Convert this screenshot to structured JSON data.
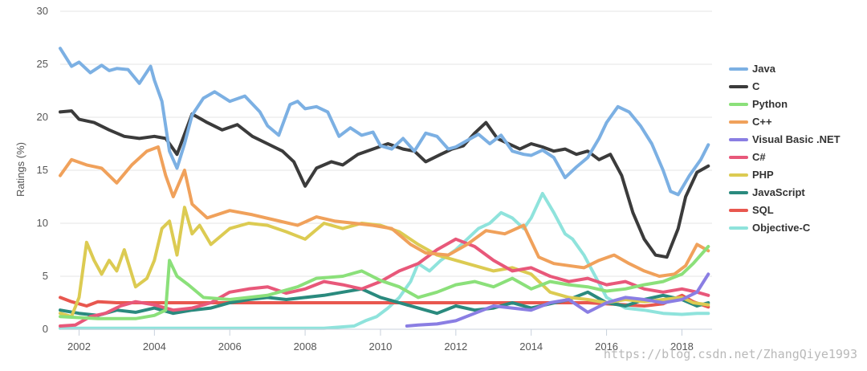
{
  "watermark": "https://blog.csdn.net/ZhangQiye1993",
  "chart_data": {
    "type": "line",
    "title": "",
    "xlabel": "",
    "ylabel": "Ratings (%)",
    "xlim": [
      2001.5,
      2018.8
    ],
    "ylim": [
      0,
      30
    ],
    "x_ticks": [
      "2002",
      "2004",
      "2006",
      "2008",
      "2010",
      "2012",
      "2014",
      "2016",
      "2018"
    ],
    "y_ticks": [
      "0",
      "5",
      "10",
      "15",
      "20",
      "25",
      "30"
    ],
    "grid": true,
    "legend_position": "right",
    "series": [
      {
        "name": "Java",
        "color": "#7cb0e3",
        "x": [
          2001.5,
          2001.8,
          2002.0,
          2002.3,
          2002.6,
          2002.8,
          2003.0,
          2003.3,
          2003.6,
          2003.9,
          2004.0,
          2004.2,
          2004.4,
          2004.6,
          2004.8,
          2005.0,
          2005.3,
          2005.6,
          2006.0,
          2006.4,
          2006.8,
          2007.0,
          2007.3,
          2007.6,
          2007.8,
          2008.0,
          2008.3,
          2008.6,
          2008.9,
          2009.2,
          2009.5,
          2009.8,
          2010.0,
          2010.3,
          2010.6,
          2010.9,
          2011.2,
          2011.5,
          2011.8,
          2012.0,
          2012.3,
          2012.6,
          2012.9,
          2013.2,
          2013.5,
          2013.8,
          2014.0,
          2014.3,
          2014.6,
          2014.9,
          2015.2,
          2015.5,
          2015.8,
          2016.0,
          2016.3,
          2016.6,
          2016.9,
          2017.2,
          2017.5,
          2017.7,
          2017.9,
          2018.2,
          2018.5,
          2018.7
        ],
        "y": [
          26.5,
          24.8,
          25.2,
          24.2,
          24.9,
          24.4,
          24.6,
          24.5,
          23.2,
          24.8,
          23.5,
          21.5,
          16.8,
          15.2,
          17.5,
          20.2,
          21.8,
          22.4,
          21.5,
          22.0,
          20.5,
          19.2,
          18.3,
          21.2,
          21.5,
          20.8,
          21.0,
          20.5,
          18.2,
          19.0,
          18.3,
          18.6,
          17.3,
          17.0,
          18.0,
          16.8,
          18.5,
          18.2,
          17.0,
          17.2,
          17.8,
          18.4,
          17.5,
          18.3,
          16.8,
          16.5,
          16.4,
          16.9,
          16.2,
          14.3,
          15.3,
          16.2,
          18.0,
          19.5,
          21.0,
          20.5,
          19.2,
          17.5,
          15.0,
          13.0,
          12.7,
          14.5,
          16.0,
          17.4
        ]
      },
      {
        "name": "C",
        "color": "#3b3b3b",
        "x": [
          2001.5,
          2001.8,
          2002.0,
          2002.4,
          2002.8,
          2003.2,
          2003.6,
          2004.0,
          2004.3,
          2004.6,
          2005.0,
          2005.4,
          2005.8,
          2006.2,
          2006.6,
          2007.0,
          2007.4,
          2007.7,
          2008.0,
          2008.3,
          2008.7,
          2009.0,
          2009.4,
          2009.8,
          2010.2,
          2010.6,
          2010.9,
          2011.2,
          2011.6,
          2011.9,
          2012.2,
          2012.5,
          2012.8,
          2013.1,
          2013.4,
          2013.7,
          2014.0,
          2014.3,
          2014.6,
          2014.9,
          2015.2,
          2015.5,
          2015.8,
          2016.1,
          2016.4,
          2016.7,
          2017.0,
          2017.3,
          2017.6,
          2017.9,
          2018.1,
          2018.4,
          2018.7
        ],
        "y": [
          20.5,
          20.6,
          19.8,
          19.5,
          18.8,
          18.2,
          18.0,
          18.2,
          18.0,
          16.5,
          20.3,
          19.5,
          18.8,
          19.3,
          18.2,
          17.5,
          16.8,
          15.8,
          13.5,
          15.2,
          15.8,
          15.5,
          16.5,
          17.0,
          17.5,
          17.0,
          16.8,
          15.8,
          16.5,
          17.0,
          17.3,
          18.5,
          19.5,
          18.0,
          17.5,
          17.0,
          17.5,
          17.2,
          16.8,
          17.0,
          16.5,
          16.8,
          16.0,
          16.5,
          14.5,
          11.0,
          8.5,
          7.0,
          6.8,
          9.5,
          12.5,
          14.8,
          15.4
        ]
      },
      {
        "name": "Python",
        "color": "#8be07a",
        "x": [
          2001.5,
          2002.5,
          2003.5,
          2004.0,
          2004.3,
          2004.4,
          2004.6,
          2004.9,
          2005.3,
          2006.0,
          2007.0,
          2007.8,
          2008.3,
          2009.0,
          2009.5,
          2010.0,
          2010.5,
          2011.0,
          2011.5,
          2012.0,
          2012.5,
          2013.0,
          2013.5,
          2014.0,
          2014.5,
          2015.0,
          2015.5,
          2016.0,
          2016.5,
          2017.0,
          2017.5,
          2018.0,
          2018.3,
          2018.7
        ],
        "y": [
          1.2,
          1.0,
          1.0,
          1.3,
          1.8,
          6.5,
          5.0,
          4.2,
          3.0,
          2.8,
          3.2,
          4.0,
          4.8,
          5.0,
          5.5,
          4.6,
          4.0,
          3.0,
          3.5,
          4.2,
          4.5,
          4.0,
          4.8,
          3.8,
          4.5,
          4.2,
          4.0,
          3.6,
          3.8,
          4.2,
          4.5,
          5.2,
          6.2,
          7.8
        ]
      },
      {
        "name": "C++",
        "color": "#f0a15b",
        "x": [
          2001.5,
          2001.8,
          2002.2,
          2002.6,
          2003.0,
          2003.4,
          2003.8,
          2004.1,
          2004.3,
          2004.5,
          2004.8,
          2005.0,
          2005.4,
          2006.0,
          2006.6,
          2007.2,
          2007.8,
          2008.3,
          2008.8,
          2009.3,
          2009.8,
          2010.3,
          2010.8,
          2011.2,
          2011.8,
          2012.3,
          2012.8,
          2013.3,
          2013.8,
          2014.2,
          2014.6,
          2015.0,
          2015.4,
          2015.8,
          2016.2,
          2016.6,
          2017.0,
          2017.4,
          2017.8,
          2018.1,
          2018.4,
          2018.7
        ],
        "y": [
          14.5,
          16.0,
          15.5,
          15.2,
          13.8,
          15.5,
          16.8,
          17.2,
          14.5,
          12.5,
          15.0,
          11.8,
          10.5,
          11.2,
          10.8,
          10.3,
          9.8,
          10.6,
          10.2,
          10.0,
          9.8,
          9.5,
          8.0,
          7.2,
          7.0,
          8.0,
          9.3,
          9.0,
          9.8,
          6.8,
          6.2,
          6.0,
          5.8,
          6.5,
          7.0,
          6.2,
          5.5,
          5.0,
          5.2,
          6.0,
          8.0,
          7.4
        ]
      },
      {
        "name": "Visual Basic .NET",
        "color": "#8a7ee3",
        "x": [
          2010.7,
          2011.0,
          2011.5,
          2012.0,
          2012.5,
          2013.0,
          2013.5,
          2014.0,
          2014.5,
          2015.0,
          2015.5,
          2016.0,
          2016.5,
          2017.0,
          2017.5,
          2018.0,
          2018.4,
          2018.7
        ],
        "y": [
          0.3,
          0.4,
          0.5,
          0.8,
          1.5,
          2.2,
          2.0,
          1.8,
          2.5,
          2.8,
          1.6,
          2.5,
          3.0,
          2.8,
          2.5,
          2.8,
          3.5,
          5.2
        ]
      },
      {
        "name": "C#",
        "color": "#e8587a",
        "x": [
          2001.5,
          2001.9,
          2002.3,
          2002.7,
          2003.1,
          2003.5,
          2004.0,
          2004.5,
          2005.0,
          2005.5,
          2006.0,
          2006.5,
          2007.0,
          2007.5,
          2008.0,
          2008.5,
          2009.0,
          2009.5,
          2010.0,
          2010.5,
          2011.0,
          2011.5,
          2012.0,
          2012.5,
          2013.0,
          2013.5,
          2014.0,
          2014.5,
          2015.0,
          2015.5,
          2016.0,
          2016.5,
          2017.0,
          2017.5,
          2018.0,
          2018.4,
          2018.7
        ],
        "y": [
          0.3,
          0.4,
          1.2,
          1.5,
          2.2,
          2.6,
          2.3,
          1.8,
          2.0,
          2.5,
          3.5,
          3.8,
          4.0,
          3.4,
          3.8,
          4.5,
          4.2,
          3.8,
          4.5,
          5.5,
          6.2,
          7.5,
          8.5,
          7.8,
          6.5,
          5.5,
          5.8,
          5.0,
          4.5,
          4.8,
          4.2,
          4.5,
          3.8,
          3.5,
          3.8,
          3.5,
          3.2
        ]
      },
      {
        "name": "PHP",
        "color": "#dccb52",
        "x": [
          2001.5,
          2001.8,
          2002.0,
          2002.2,
          2002.4,
          2002.6,
          2002.8,
          2003.0,
          2003.2,
          2003.5,
          2003.8,
          2004.0,
          2004.2,
          2004.4,
          2004.6,
          2004.8,
          2005.0,
          2005.2,
          2005.5,
          2006.0,
          2006.5,
          2007.0,
          2007.5,
          2008.0,
          2008.5,
          2009.0,
          2009.5,
          2010.0,
          2010.5,
          2011.0,
          2011.5,
          2012.0,
          2012.5,
          2013.0,
          2013.5,
          2014.0,
          2014.5,
          2015.0,
          2015.5,
          2016.0,
          2016.5,
          2017.0,
          2017.5,
          2018.0,
          2018.3,
          2018.7
        ],
        "y": [
          1.5,
          1.2,
          3.0,
          8.2,
          6.5,
          5.2,
          6.5,
          5.5,
          7.5,
          4.0,
          4.8,
          6.5,
          9.5,
          10.2,
          7.0,
          11.5,
          9.0,
          9.8,
          8.0,
          9.5,
          10.0,
          9.8,
          9.2,
          8.5,
          10.0,
          9.5,
          10.0,
          9.8,
          9.2,
          8.0,
          7.0,
          6.5,
          6.0,
          5.5,
          5.8,
          5.2,
          3.5,
          3.0,
          2.8,
          2.5,
          2.8,
          2.6,
          2.8,
          3.0,
          2.5,
          2.3
        ]
      },
      {
        "name": "JavaScript",
        "color": "#2a8a7e",
        "x": [
          2001.5,
          2002.0,
          2002.5,
          2003.0,
          2003.5,
          2004.0,
          2004.5,
          2005.0,
          2005.5,
          2006.0,
          2006.5,
          2007.0,
          2007.5,
          2008.0,
          2008.5,
          2009.0,
          2009.5,
          2010.0,
          2010.5,
          2011.0,
          2011.5,
          2012.0,
          2012.5,
          2013.0,
          2013.5,
          2014.0,
          2014.5,
          2015.0,
          2015.5,
          2016.0,
          2016.5,
          2017.0,
          2017.5,
          2018.0,
          2018.4,
          2018.7
        ],
        "y": [
          1.8,
          1.5,
          1.3,
          1.8,
          1.6,
          2.0,
          1.5,
          1.8,
          2.0,
          2.5,
          2.8,
          3.0,
          2.8,
          3.0,
          3.2,
          3.5,
          3.8,
          3.0,
          2.5,
          2.0,
          1.5,
          2.2,
          1.8,
          2.0,
          2.5,
          2.0,
          2.4,
          2.8,
          3.5,
          2.5,
          2.2,
          2.8,
          3.2,
          2.8,
          2.2,
          2.5
        ]
      },
      {
        "name": "SQL",
        "color": "#e8574f",
        "x": [
          2001.5,
          2001.8,
          2002.2,
          2002.5,
          2003.0,
          2003.5,
          2004.0,
          2004.8,
          2005.5,
          2006.5,
          2007.5,
          2008.5,
          2009.5,
          2010.5,
          2011.5,
          2012.5,
          2013.5,
          2014.5,
          2015.5,
          2016.5,
          2017.0,
          2017.5,
          2018.0,
          2018.3,
          2018.7
        ],
        "y": [
          3.0,
          2.6,
          2.2,
          2.6,
          2.5,
          2.5,
          2.5,
          2.5,
          2.5,
          2.5,
          2.5,
          2.5,
          2.5,
          2.5,
          2.5,
          2.5,
          2.5,
          2.5,
          2.5,
          2.3,
          2.2,
          2.4,
          3.2,
          2.6,
          2.1
        ]
      },
      {
        "name": "Objective-C",
        "color": "#8fe3dc",
        "x": [
          2001.5,
          2003.0,
          2005.0,
          2007.0,
          2008.5,
          2009.3,
          2009.6,
          2009.9,
          2010.2,
          2010.5,
          2010.8,
          2011.0,
          2011.3,
          2011.6,
          2012.0,
          2012.3,
          2012.6,
          2012.9,
          2013.2,
          2013.5,
          2013.8,
          2014.0,
          2014.3,
          2014.6,
          2014.9,
          2015.1,
          2015.4,
          2015.7,
          2016.0,
          2016.5,
          2017.0,
          2017.5,
          2018.0,
          2018.4,
          2018.7
        ],
        "y": [
          0.1,
          0.1,
          0.1,
          0.1,
          0.1,
          0.3,
          0.8,
          1.2,
          2.0,
          3.0,
          4.5,
          6.2,
          5.5,
          6.5,
          7.5,
          8.5,
          9.5,
          10.0,
          11.0,
          10.5,
          9.5,
          10.5,
          12.8,
          11.0,
          9.0,
          8.5,
          7.0,
          5.0,
          3.0,
          2.0,
          1.8,
          1.5,
          1.4,
          1.5,
          1.5
        ]
      }
    ]
  }
}
